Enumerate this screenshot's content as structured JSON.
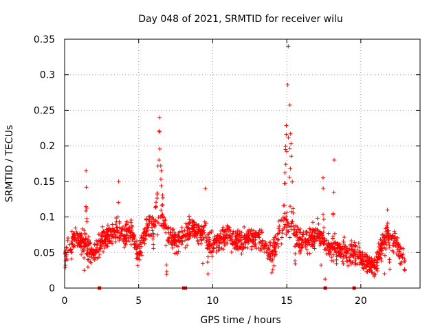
{
  "chart_data": {
    "type": "scatter",
    "title": "Day 048 of 2021, SRMTID for receiver wilu",
    "xlabel": "GPS time / hours",
    "ylabel": "SRMTID / TECUs",
    "xlim": [
      0,
      24
    ],
    "ylim": [
      0,
      0.35
    ],
    "x_ticks": [
      0,
      5,
      10,
      15,
      20
    ],
    "y_ticks": [
      0,
      0.05,
      0.1,
      0.15,
      0.2,
      0.25,
      0.3,
      0.35
    ],
    "x_tick_labels": [
      "0",
      "5",
      "10",
      "15",
      "20"
    ],
    "y_tick_labels": [
      "0",
      "0.05",
      "0.1",
      "0.15",
      "0.2",
      "0.25",
      "0.3",
      "0.35"
    ],
    "grid": true,
    "marker": "plus",
    "color": "#ff0000",
    "zero_markers_x": [
      2.35,
      8.05,
      8.15,
      17.6,
      19.55
    ],
    "profile": {
      "x": [
        0.0,
        0.5,
        1.0,
        1.5,
        2.0,
        2.5,
        3.0,
        3.5,
        4.0,
        4.5,
        5.0,
        5.5,
        6.0,
        6.5,
        7.0,
        7.5,
        8.0,
        8.5,
        9.0,
        9.5,
        10.0,
        10.5,
        11.0,
        11.5,
        12.0,
        12.5,
        13.0,
        13.5,
        14.0,
        14.5,
        15.0,
        15.5,
        16.0,
        16.5,
        17.0,
        17.5,
        18.0,
        18.5,
        19.0,
        19.5,
        20.0,
        20.5,
        21.0,
        21.5,
        22.0,
        22.5,
        23.0
      ],
      "y": [
        0.04,
        0.065,
        0.07,
        0.06,
        0.05,
        0.07,
        0.075,
        0.08,
        0.075,
        0.08,
        0.045,
        0.085,
        0.09,
        0.1,
        0.075,
        0.065,
        0.07,
        0.085,
        0.08,
        0.075,
        0.06,
        0.07,
        0.075,
        0.065,
        0.065,
        0.07,
        0.075,
        0.06,
        0.045,
        0.08,
        0.09,
        0.08,
        0.065,
        0.065,
        0.075,
        0.065,
        0.06,
        0.055,
        0.05,
        0.05,
        0.04,
        0.035,
        0.03,
        0.065,
        0.07,
        0.06,
        0.03
      ]
    },
    "spikes": [
      {
        "x_start": 1.3,
        "x_end": 1.6,
        "peak": 0.165
      },
      {
        "x_start": 3.5,
        "x_end": 3.8,
        "peak": 0.15
      },
      {
        "x_start": 5.9,
        "x_end": 6.9,
        "peak": 0.24
      },
      {
        "x_start": 9.3,
        "x_end": 9.7,
        "peak": 0.14
      },
      {
        "x_start": 14.6,
        "x_end": 15.6,
        "peak": 0.34
      },
      {
        "x_start": 17.3,
        "x_end": 17.6,
        "peak": 0.155
      },
      {
        "x_start": 18.0,
        "x_end": 18.4,
        "peak": 0.18
      },
      {
        "x_start": 21.6,
        "x_end": 22.0,
        "peak": 0.11
      }
    ],
    "sample_count": 1800
  }
}
